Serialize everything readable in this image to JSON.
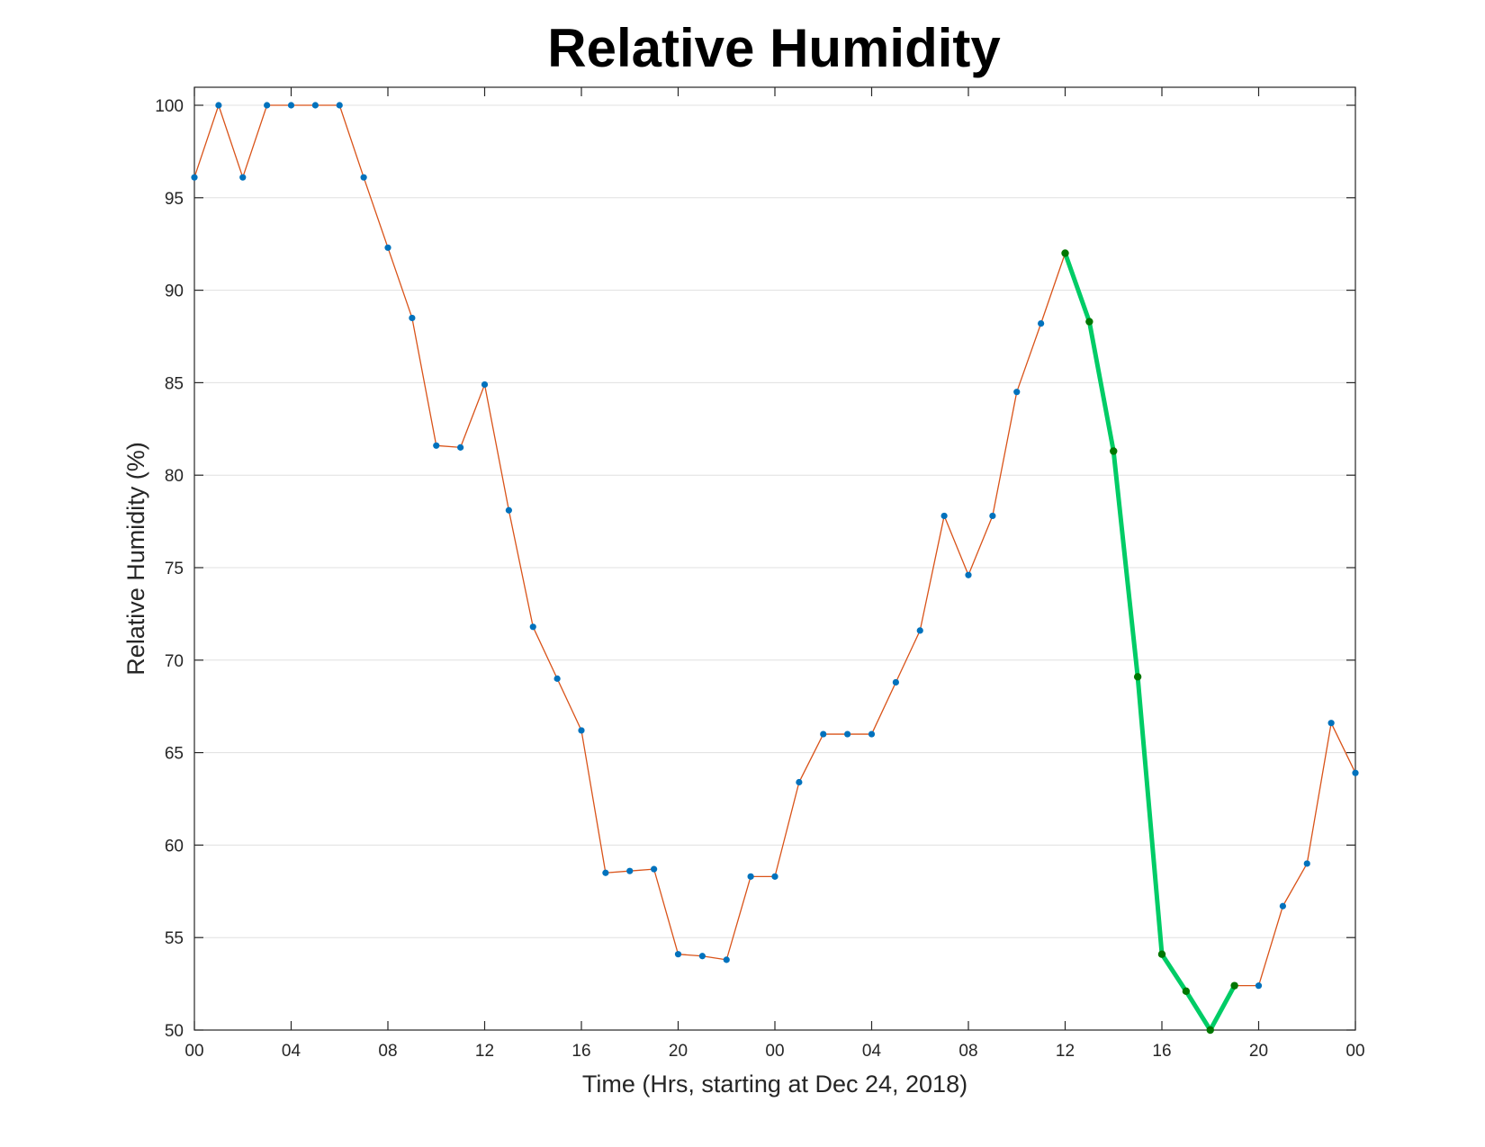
{
  "chart_data": {
    "type": "line",
    "title": "Relative Humidity",
    "xlabel": "Time (Hrs, starting at Dec 24, 2018)",
    "ylabel": "Relative Humidity (%)",
    "xlim": [
      0,
      48
    ],
    "ylim": [
      50,
      100
    ],
    "grid": "horizontal",
    "x_ticks": [
      0,
      4,
      8,
      12,
      16,
      20,
      24,
      28,
      32,
      36,
      40,
      44,
      48
    ],
    "x_tick_labels": [
      "00",
      "04",
      "08",
      "12",
      "16",
      "20",
      "00",
      "04",
      "08",
      "12",
      "16",
      "20",
      "00"
    ],
    "y_ticks": [
      50,
      55,
      60,
      65,
      70,
      75,
      80,
      85,
      90,
      95,
      100
    ],
    "y_tick_labels": [
      "50",
      "55",
      "60",
      "65",
      "70",
      "75",
      "80",
      "85",
      "90",
      "95",
      "100"
    ],
    "colors": {
      "line": "#d95319",
      "markers": "#0072bd",
      "highlight_line": "#00cc66",
      "highlight_markers": "#007700",
      "grid": "#e0e0e0",
      "axes": "#262626"
    },
    "series": [
      {
        "x": [
          0,
          1,
          2,
          3,
          4,
          5,
          6,
          7,
          8,
          9,
          10,
          11,
          12,
          13,
          14,
          15,
          16,
          17,
          18,
          19,
          20,
          21,
          22,
          23,
          24,
          25,
          26,
          27,
          28,
          29,
          30,
          31,
          32,
          33,
          34,
          35,
          36,
          37,
          38,
          39,
          40,
          41,
          42,
          43,
          44,
          45,
          46,
          47,
          48
        ],
        "values": [
          96.1,
          100,
          96.1,
          100,
          100,
          100,
          100,
          96.1,
          92.3,
          88.5,
          81.6,
          81.5,
          84.9,
          78.1,
          71.8,
          69.0,
          66.2,
          58.5,
          58.6,
          58.7,
          54.1,
          54.0,
          53.8,
          58.3,
          58.3,
          63.4,
          66.0,
          66.0,
          66.0,
          68.8,
          71.6,
          77.8,
          74.6,
          77.8,
          84.5,
          88.2,
          92.0,
          88.3,
          81.3,
          69.1,
          54.1,
          52.1,
          50.0,
          52.4,
          52.4,
          56.7,
          59.0,
          66.6,
          63.9
        ]
      },
      {
        "highlight": true,
        "x": [
          36,
          37,
          38,
          39,
          40,
          41,
          42,
          43
        ],
        "values": [
          92.0,
          88.3,
          81.3,
          69.1,
          54.1,
          52.1,
          50.0,
          52.4
        ]
      }
    ]
  }
}
